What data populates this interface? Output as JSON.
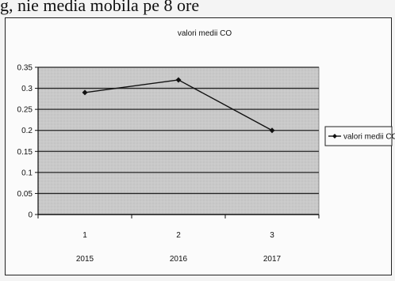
{
  "document": {
    "text_line": "g, nie media mobila pe 8 ore"
  },
  "chart_data": {
    "type": "line",
    "title": "valori medii CO",
    "categories": [
      "1",
      "2",
      "3"
    ],
    "category_sub_labels": [
      "2015",
      "2016",
      "2017"
    ],
    "series": [
      {
        "name": "valori medii CO",
        "values": [
          0.29,
          0.32,
          0.2
        ],
        "color": "#111111"
      }
    ],
    "ylim": [
      0,
      0.35
    ],
    "yticks": [
      "0",
      "0.05",
      "0.1",
      "0.15",
      "0.2",
      "0.25",
      "0.3",
      "0.35"
    ],
    "grid": true,
    "plot_background": "#c8c8c8",
    "legend_position": "right"
  }
}
